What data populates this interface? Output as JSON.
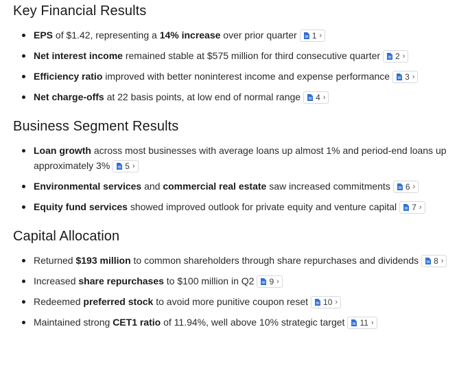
{
  "sections": [
    {
      "title": "Key Financial Results",
      "items": [
        {
          "parts": [
            {
              "b": "EPS"
            },
            {
              "t": " of $1.42, representing a "
            },
            {
              "b": "14% increase"
            },
            {
              "t": " over prior quarter"
            }
          ],
          "cite": "1"
        },
        {
          "parts": [
            {
              "b": "Net interest income"
            },
            {
              "t": " remained stable at $575 million for third consecutive quarter"
            }
          ],
          "cite": "2"
        },
        {
          "parts": [
            {
              "b": "Efficiency ratio"
            },
            {
              "t": " improved with better noninterest income and expense performance"
            }
          ],
          "cite": "3"
        },
        {
          "parts": [
            {
              "b": "Net charge-offs"
            },
            {
              "t": " at 22 basis points, at low end of normal range"
            }
          ],
          "cite": "4"
        }
      ]
    },
    {
      "title": "Business Segment Results",
      "items": [
        {
          "parts": [
            {
              "b": "Loan growth"
            },
            {
              "t": " across most businesses with average loans up almost 1% and period-end loans up approximately 3%"
            }
          ],
          "cite": "5"
        },
        {
          "parts": [
            {
              "b": "Environmental services"
            },
            {
              "t": " and "
            },
            {
              "b": "commercial real estate"
            },
            {
              "t": " saw increased commitments"
            }
          ],
          "cite": "6"
        },
        {
          "parts": [
            {
              "b": "Equity fund services"
            },
            {
              "t": " showed improved outlook for private equity and venture capital"
            }
          ],
          "cite": "7"
        }
      ]
    },
    {
      "title": "Capital Allocation",
      "items": [
        {
          "parts": [
            {
              "t": "Returned "
            },
            {
              "b": "$193 million"
            },
            {
              "t": " to common shareholders through share repurchases and dividends"
            }
          ],
          "cite": "8"
        },
        {
          "parts": [
            {
              "t": "Increased "
            },
            {
              "b": "share repurchases"
            },
            {
              "t": " to $100 million in Q2"
            }
          ],
          "cite": "9"
        },
        {
          "parts": [
            {
              "t": "Redeemed "
            },
            {
              "b": "preferred stock"
            },
            {
              "t": " to avoid more punitive coupon reset"
            }
          ],
          "cite": "10"
        },
        {
          "parts": [
            {
              "t": "Maintained strong "
            },
            {
              "b": "CET1 ratio"
            },
            {
              "t": " of 11.94%, well above 10% strategic target"
            }
          ],
          "cite": "11"
        }
      ]
    }
  ],
  "icons": {
    "citation": "document-icon",
    "expand": "chevron-right-icon"
  },
  "colors": {
    "citation_icon": "#2f6fd6",
    "citation_border": "#d6d9de"
  }
}
